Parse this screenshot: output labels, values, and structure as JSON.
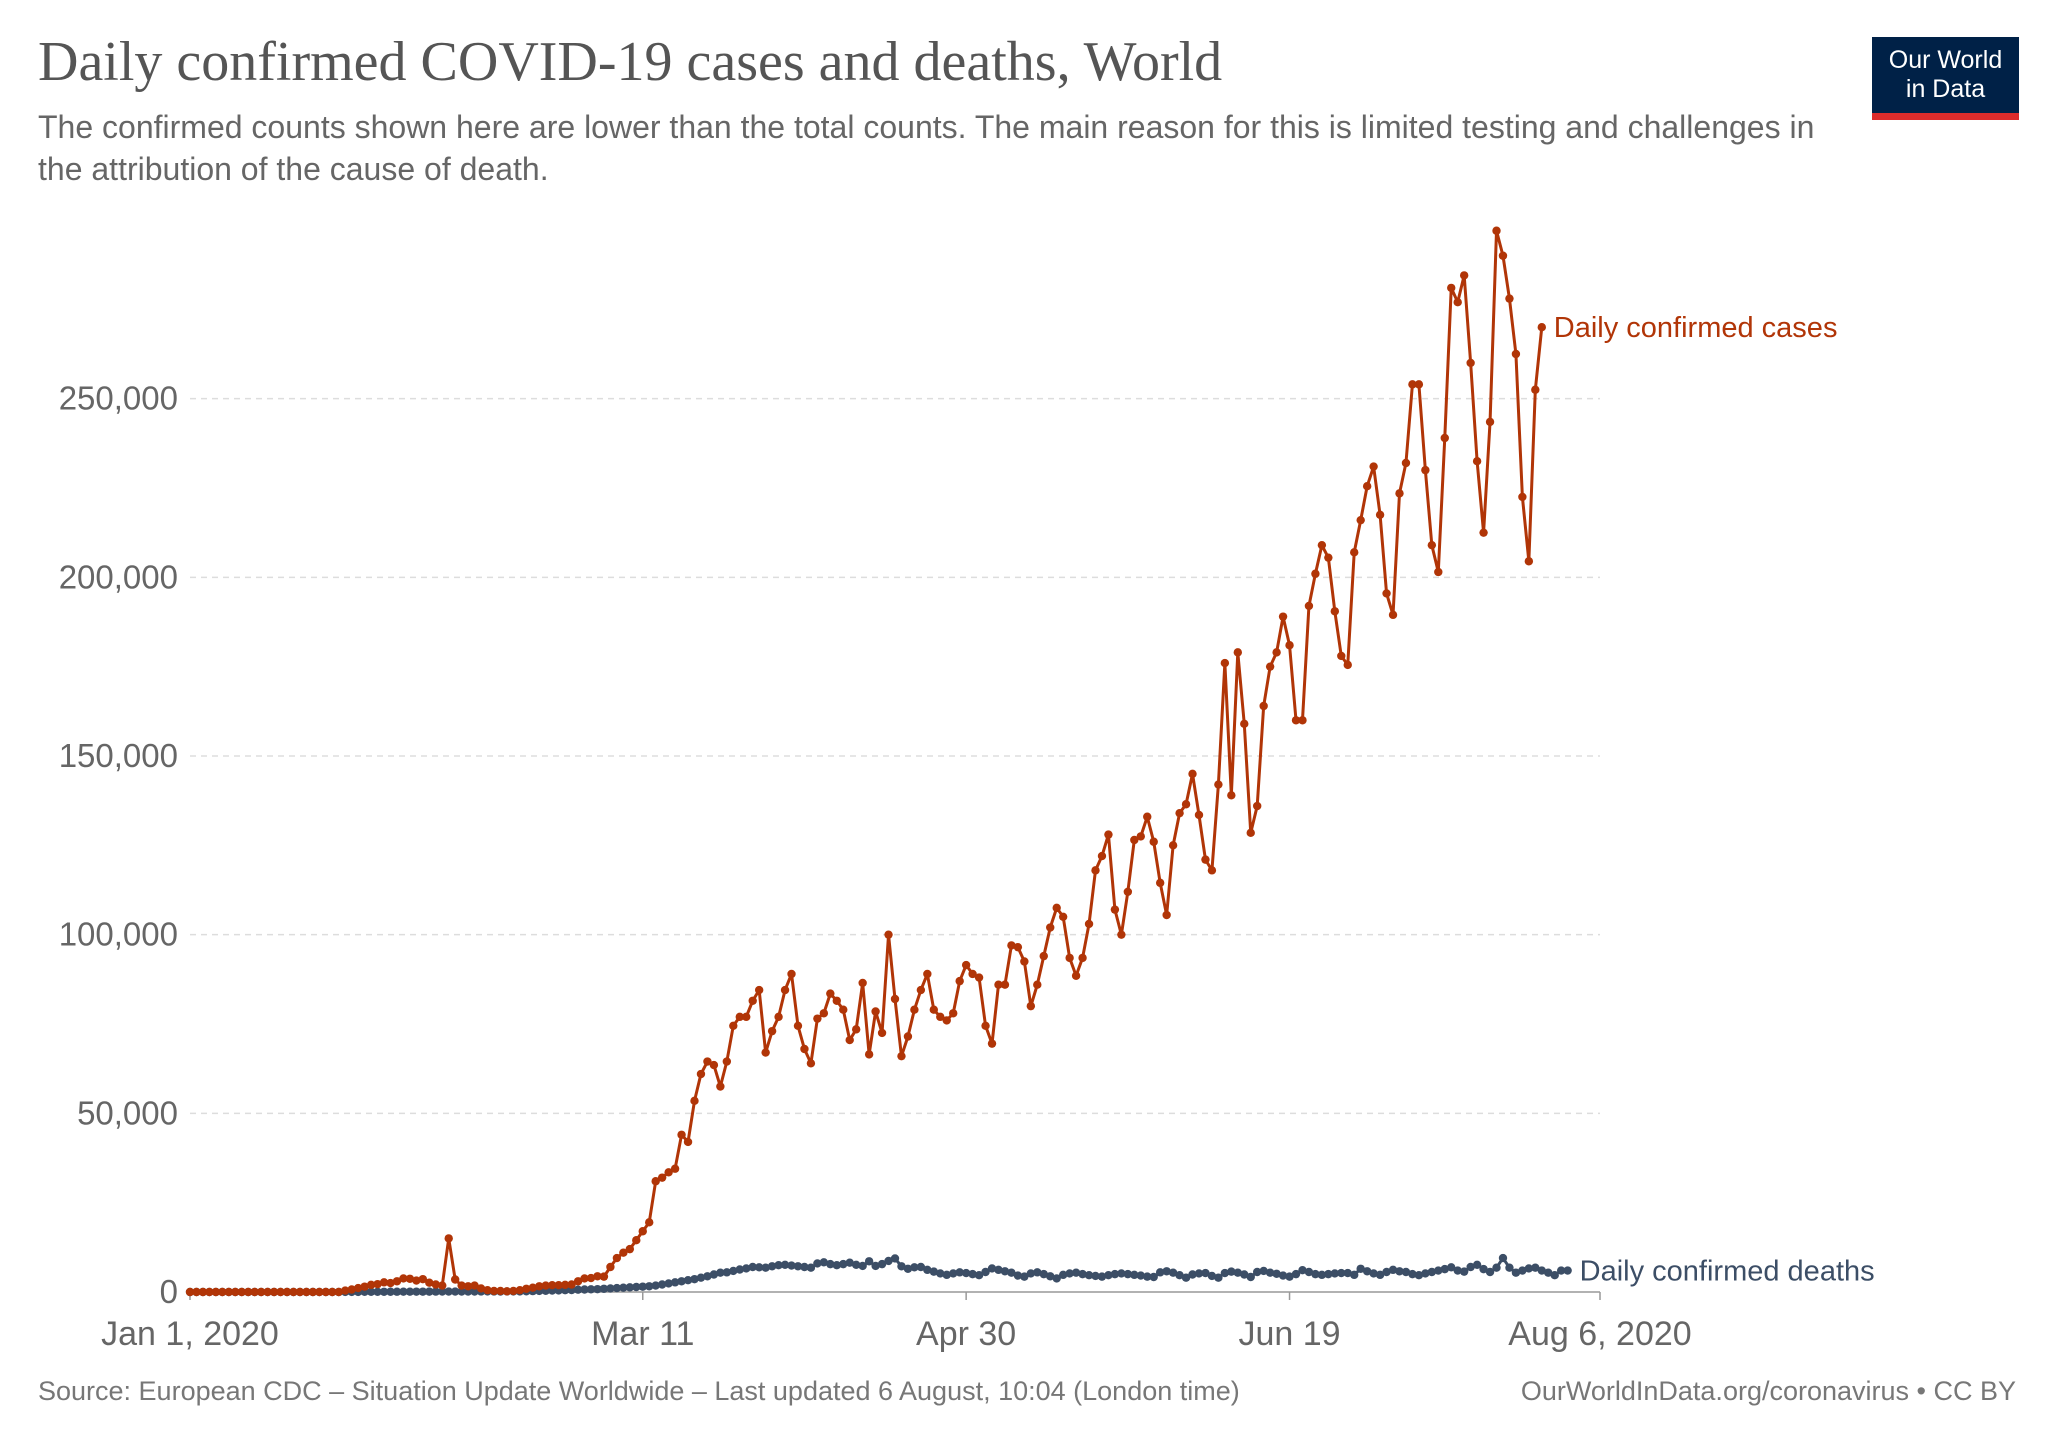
{
  "header": {
    "title": "Daily confirmed COVID-19 cases and deaths, World",
    "subtitle": "The confirmed counts shown here are lower than the total counts. The main reason for this is limited testing and challenges in the attribution of the cause of death."
  },
  "logo": {
    "line1": "Our World",
    "line2": "in Data"
  },
  "footer": {
    "source": "Source: European CDC – Situation Update Worldwide – Last updated 6 August, 10:04 (London time)",
    "credit": "OurWorldInData.org/coronavirus • CC BY"
  },
  "chart_data": {
    "type": "line",
    "title": "Daily confirmed COVID-19 cases and deaths, World",
    "xlabel": "",
    "ylabel": "",
    "ylim": [
      0,
      300000
    ],
    "xlim": [
      "2020-01-01",
      "2020-08-06"
    ],
    "grid": true,
    "legend": "inline-right",
    "y_ticks": [
      {
        "value": 0,
        "label": "0"
      },
      {
        "value": 50000,
        "label": "50,000"
      },
      {
        "value": 100000,
        "label": "100,000"
      },
      {
        "value": 150000,
        "label": "150,000"
      },
      {
        "value": 200000,
        "label": "200,000"
      },
      {
        "value": 250000,
        "label": "250,000"
      }
    ],
    "x_ticks": [
      {
        "date": "2020-01-01",
        "label": "Jan 1, 2020"
      },
      {
        "date": "2020-03-11",
        "label": "Mar 11"
      },
      {
        "date": "2020-04-30",
        "label": "Apr 30"
      },
      {
        "date": "2020-06-19",
        "label": "Jun 19"
      },
      {
        "date": "2020-08-06",
        "label": "Aug 6, 2020"
      }
    ],
    "series": [
      {
        "name": "Daily confirmed cases",
        "color": "#b13507",
        "start_date": "2020-01-01",
        "values": [
          0,
          0,
          0,
          0,
          0,
          0,
          0,
          0,
          0,
          0,
          0,
          0,
          0,
          0,
          0,
          0,
          0,
          0,
          0,
          0,
          0,
          0,
          0,
          0,
          400,
          700,
          1100,
          1500,
          2000,
          2200,
          2700,
          2500,
          3000,
          3800,
          3700,
          3200,
          3600,
          2600,
          2100,
          1800,
          15000,
          3500,
          1800,
          1600,
          1800,
          1000,
          500,
          300,
          300,
          200,
          300,
          500,
          900,
          1200,
          1600,
          1800,
          1900,
          1900,
          2000,
          2100,
          3000,
          3800,
          3900,
          4400,
          4300,
          7000,
          9500,
          11000,
          12000,
          14500,
          17000,
          19500,
          31000,
          32000,
          33500,
          34500,
          44000,
          42000,
          53500,
          61000,
          64500,
          63500,
          57500,
          64500,
          74500,
          77000,
          77000,
          81500,
          84500,
          67000,
          73000,
          77000,
          84500,
          89000,
          74500,
          68000,
          64000,
          76500,
          78000,
          83500,
          81500,
          79000,
          70500,
          73500,
          86500,
          66500,
          78500,
          72500,
          100000,
          82000,
          66000,
          71500,
          79000,
          84500,
          89000,
          79000,
          77000,
          76000,
          78000,
          87000,
          91500,
          89000,
          88000,
          74500,
          69500,
          86000,
          86000,
          97000,
          96500,
          92500,
          80000,
          86000,
          94000,
          102000,
          107500,
          105000,
          93500,
          88500,
          93500,
          103000,
          118000,
          122000,
          128000,
          107000,
          100000,
          112000,
          126500,
          127500,
          133000,
          126000,
          114500,
          105500,
          125000,
          134000,
          136500,
          145000,
          133500,
          121000,
          118000,
          142000,
          176000,
          139000,
          179000,
          159000,
          128500,
          136000,
          164000,
          175000,
          179000,
          189000,
          181000,
          160000,
          160000,
          192000,
          201000,
          209000,
          205500,
          190500,
          178000,
          175500,
          207000,
          216000,
          225500,
          231000,
          217500,
          195500,
          189500,
          223500,
          232000,
          254000,
          254000,
          230000,
          209000,
          201500,
          239000,
          281000,
          277000,
          284500,
          260000,
          232500,
          212500,
          243500,
          297000,
          290000,
          278000,
          262500,
          222500,
          204500,
          252500,
          270000
        ]
      },
      {
        "name": "Daily confirmed deaths",
        "color": "#3c4e66",
        "start_date": "2020-01-01",
        "values": [
          0,
          0,
          0,
          0,
          0,
          0,
          0,
          0,
          0,
          0,
          0,
          0,
          0,
          0,
          0,
          0,
          0,
          0,
          0,
          0,
          0,
          0,
          0,
          0,
          15,
          25,
          35,
          45,
          55,
          60,
          65,
          70,
          75,
          80,
          90,
          100,
          100,
          105,
          110,
          115,
          120,
          125,
          130,
          135,
          140,
          145,
          150,
          145,
          140,
          150,
          160,
          170,
          200,
          250,
          300,
          350,
          400,
          450,
          500,
          550,
          650,
          700,
          750,
          800,
          900,
          1000,
          1100,
          1200,
          1300,
          1400,
          1500,
          1600,
          1800,
          2100,
          2400,
          2700,
          3000,
          3300,
          3600,
          4000,
          4400,
          4900,
          5400,
          5500,
          5900,
          6300,
          6600,
          7000,
          6900,
          6800,
          7200,
          7500,
          7600,
          7400,
          7200,
          7000,
          6800,
          8000,
          8300,
          7800,
          7500,
          7800,
          8200,
          7600,
          7300,
          8600,
          7300,
          7800,
          8700,
          9400,
          7200,
          6500,
          6900,
          7000,
          6200,
          5700,
          5200,
          4800,
          5200,
          5500,
          5300,
          5000,
          4700,
          5600,
          6600,
          6200,
          5800,
          5400,
          4600,
          4300,
          5200,
          5500,
          5000,
          4400,
          3800,
          4800,
          5200,
          5400,
          5000,
          4700,
          4500,
          4300,
          4700,
          5000,
          5200,
          5000,
          4800,
          4600,
          4300,
          4200,
          5500,
          5800,
          5400,
          4700,
          4000,
          4900,
          5200,
          5300,
          4500,
          4000,
          5300,
          5700,
          5400,
          4900,
          4200,
          5600,
          5900,
          5400,
          5100,
          4600,
          4300,
          5000,
          6100,
          5600,
          5000,
          4800,
          5000,
          5200,
          5300,
          5300,
          4800,
          6500,
          5800,
          5200,
          4800,
          5600,
          6200,
          5800,
          5600,
          5000,
          4700,
          5200,
          5600,
          6000,
          6400,
          6900,
          6000,
          5700,
          7000,
          7600,
          6400,
          5600,
          6800,
          9500,
          6800,
          5400,
          6000,
          6600,
          6800,
          6000,
          5400,
          4700,
          6000,
          6000
        ]
      }
    ]
  }
}
